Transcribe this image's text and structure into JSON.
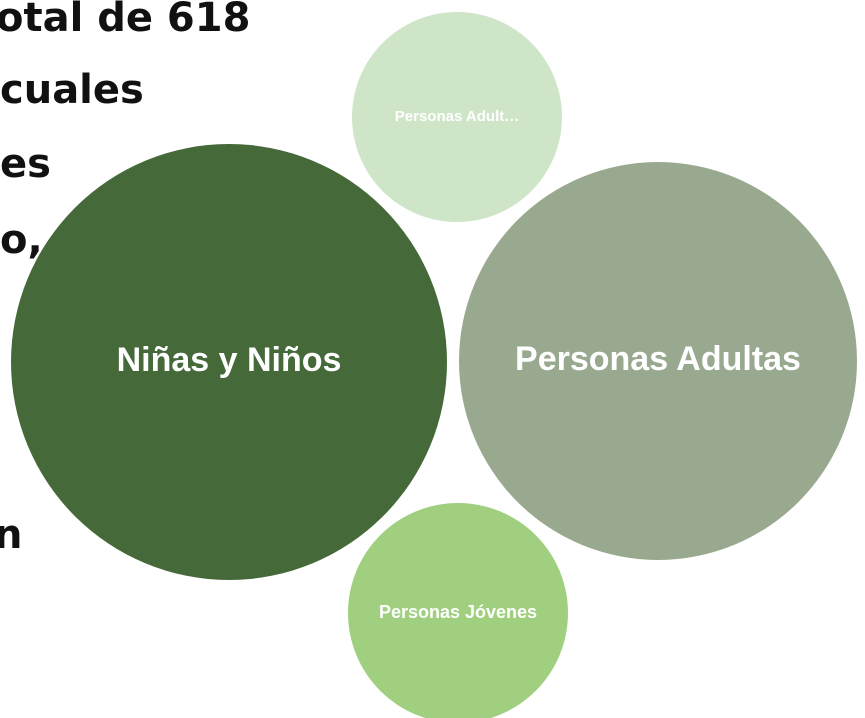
{
  "background_text": [
    "otal de 618",
    "cuales",
    "es",
    "o,",
    "n"
  ],
  "bubbles": [
    {
      "label": "Niñas y Niños",
      "color": "#46693a"
    },
    {
      "label": "Personas Adultas",
      "color": "#98a98f"
    },
    {
      "label": "Personas Adult…",
      "color": "#cfe5c8"
    },
    {
      "label": "Personas Jóvenes",
      "color": "#a0d07f"
    }
  ]
}
